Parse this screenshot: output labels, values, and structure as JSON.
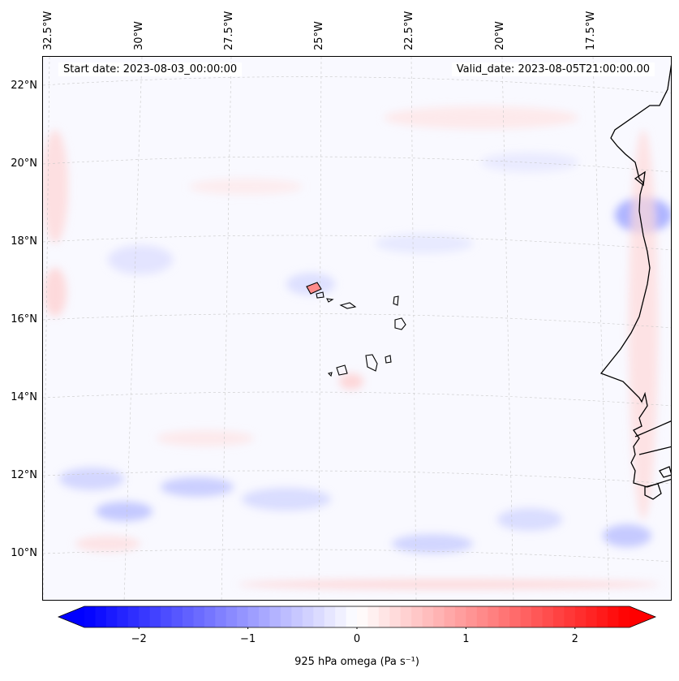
{
  "map": {
    "start_date": "Start date: 2023-08-03_00:00:00",
    "valid_date": "Valid_date: 2023-08-05T21:00:00.00",
    "lon_labels": [
      "32.5°W",
      "30°W",
      "27.5°W",
      "25°W",
      "22.5°W",
      "20°W",
      "17.5°W"
    ],
    "lat_labels": [
      "22°N",
      "20°N",
      "18°N",
      "16°N",
      "14°N",
      "12°N",
      "10°N"
    ],
    "region": "Cabo Verde islands and West African coast",
    "colors": {
      "coastline": "#000000",
      "gridline": "#cccccc",
      "background": "#f9f9ff"
    }
  },
  "colorbar": {
    "label": "925 hPa omega (Pa s⁻¹)",
    "ticks": [
      "−2",
      "−1",
      "0",
      "1",
      "2"
    ],
    "tick_values": [
      -2,
      -1,
      0,
      1,
      2
    ],
    "range": [
      -2.5,
      2.5
    ],
    "colormap": "bwr",
    "extend": "both",
    "colors": {
      "min": "#0000ff",
      "mid": "#ffffff",
      "max": "#ff0000"
    }
  }
}
